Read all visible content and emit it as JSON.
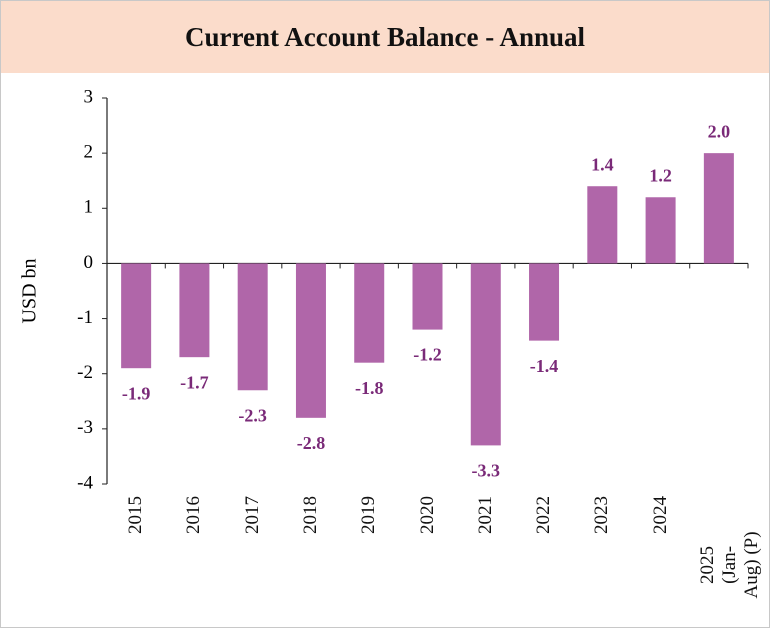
{
  "chart_data": {
    "type": "bar",
    "title": "Current Account Balance - Annual",
    "y_label": "USD bn",
    "categories": [
      "2015",
      "2016",
      "2017",
      "2018",
      "2019",
      "2020",
      "2021",
      "2022",
      "2023",
      "2024",
      "2025\n(Jan-Aug) (P)"
    ],
    "values": [
      -1.9,
      -1.7,
      -2.3,
      -2.8,
      -1.8,
      -1.2,
      -3.3,
      -1.4,
      1.4,
      1.2,
      2.0
    ],
    "value_labels": [
      "-1.9",
      "-1.7",
      "-2.3",
      "-2.8",
      "-1.8",
      "-1.2",
      "-3.3",
      "-1.4",
      "1.4",
      "1.2",
      "2.0"
    ],
    "color": "#b066a9",
    "label_color": "#7a2a78",
    "ylim": [
      -4,
      3
    ],
    "yticks": [
      -4,
      -3,
      -2,
      -1,
      0,
      1,
      2,
      3
    ],
    "grid": false
  }
}
